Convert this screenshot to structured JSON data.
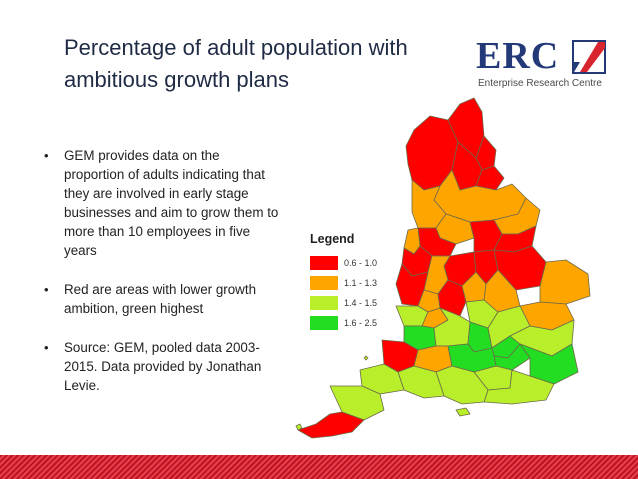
{
  "slide": {
    "title": "Percentage of adult population with ambitious growth plans",
    "bullets": [
      "GEM provides data on the proportion of adults indicating that they are involved in early stage businesses and aim to grow them to more than 10 employees in five years",
      "Red are areas with lower growth ambition, green highest",
      "Source: GEM, pooled data 2003-2015. Data provided by Jonathan Levie."
    ],
    "bullet_symbol": "•"
  },
  "logo": {
    "wordmark": "ERC",
    "subtitle": "Enterprise Research Centre",
    "colors": {
      "navy": "#243a78",
      "red": "#d8262f"
    }
  },
  "legend": {
    "title": "Legend",
    "items": [
      {
        "label": "0.6 - 1.0",
        "color": "#ff0000"
      },
      {
        "label": "1.1 - 1.3",
        "color": "#ffa500"
      },
      {
        "label": "1.4 - 1.5",
        "color": "#b9ef2a"
      },
      {
        "label": "1.6 - 2.5",
        "color": "#22dd22"
      }
    ]
  },
  "map": {
    "subject": "England regions",
    "region_classes": [
      "0.6 - 1.0",
      "1.1 - 1.3",
      "1.4 - 1.5",
      "1.6 - 2.5"
    ]
  },
  "colors": {
    "bottom_bar": "#c1121f",
    "title_text": "#1f2a44"
  }
}
